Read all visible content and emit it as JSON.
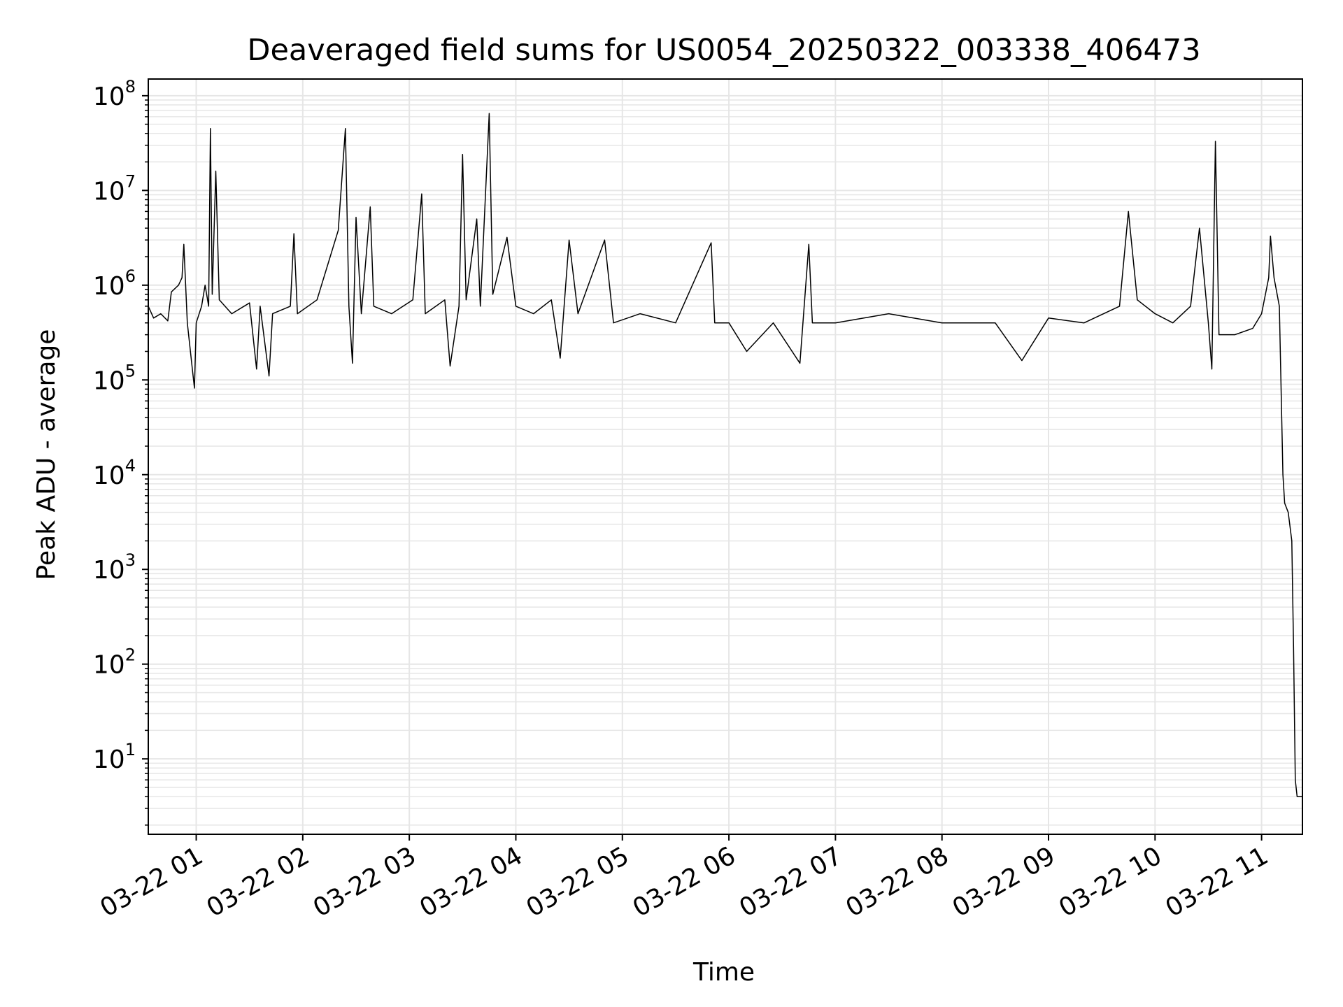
{
  "chart_data": {
    "type": "line",
    "title": "Deaveraged field sums for US0054_20250322_003338_406473",
    "xlabel": "Time",
    "ylabel": "Peak ADU - average",
    "y_scale": "log",
    "ylim": [
      1.6,
      150000000
    ],
    "xlim": [
      "2025-03-22 00:33",
      "2025-03-22 11:23"
    ],
    "grid": true,
    "line_color": "#000000",
    "grid_color": "#e6e6e6",
    "x_ticks": [
      {
        "value": "2025-03-22 01:00",
        "label": "03-22 01"
      },
      {
        "value": "2025-03-22 02:00",
        "label": "03-22 02"
      },
      {
        "value": "2025-03-22 03:00",
        "label": "03-22 03"
      },
      {
        "value": "2025-03-22 04:00",
        "label": "03-22 04"
      },
      {
        "value": "2025-03-22 05:00",
        "label": "03-22 05"
      },
      {
        "value": "2025-03-22 06:00",
        "label": "03-22 06"
      },
      {
        "value": "2025-03-22 07:00",
        "label": "03-22 07"
      },
      {
        "value": "2025-03-22 08:00",
        "label": "03-22 08"
      },
      {
        "value": "2025-03-22 09:00",
        "label": "03-22 09"
      },
      {
        "value": "2025-03-22 10:00",
        "label": "03-22 10"
      },
      {
        "value": "2025-03-22 11:00",
        "label": "03-22 11"
      }
    ],
    "y_ticks": [
      {
        "value": 10,
        "base": "10",
        "exp": "1"
      },
      {
        "value": 100,
        "base": "10",
        "exp": "2"
      },
      {
        "value": 1000,
        "base": "10",
        "exp": "3"
      },
      {
        "value": 10000,
        "base": "10",
        "exp": "4"
      },
      {
        "value": 100000,
        "base": "10",
        "exp": "5"
      },
      {
        "value": 1000000,
        "base": "10",
        "exp": "6"
      },
      {
        "value": 10000000,
        "base": "10",
        "exp": "7"
      },
      {
        "value": 100000000,
        "base": "10",
        "exp": "8"
      }
    ],
    "series": [
      {
        "points": [
          [
            "2025-03-22 00:33",
            600000
          ],
          [
            "2025-03-22 00:36",
            450000
          ],
          [
            "2025-03-22 00:40",
            500000
          ],
          [
            "2025-03-22 00:44",
            420000
          ],
          [
            "2025-03-22 00:46",
            850000
          ],
          [
            "2025-03-22 00:50",
            1000000
          ],
          [
            "2025-03-22 00:52",
            1200000
          ],
          [
            "2025-03-22 00:53",
            2700000
          ],
          [
            "2025-03-22 00:55",
            400000
          ],
          [
            "2025-03-22 00:58",
            120000
          ],
          [
            "2025-03-22 00:59",
            82000
          ],
          [
            "2025-03-22 01:00",
            400000
          ],
          [
            "2025-03-22 01:03",
            600000
          ],
          [
            "2025-03-22 01:05",
            1000000
          ],
          [
            "2025-03-22 01:07",
            600000
          ],
          [
            "2025-03-22 01:08",
            45000000
          ],
          [
            "2025-03-22 01:09",
            800000
          ],
          [
            "2025-03-22 01:11",
            16000000
          ],
          [
            "2025-03-22 01:13",
            700000
          ],
          [
            "2025-03-22 01:20",
            500000
          ],
          [
            "2025-03-22 01:30",
            650000
          ],
          [
            "2025-03-22 01:34",
            130000
          ],
          [
            "2025-03-22 01:36",
            600000
          ],
          [
            "2025-03-22 01:41",
            110000
          ],
          [
            "2025-03-22 01:43",
            500000
          ],
          [
            "2025-03-22 01:53",
            600000
          ],
          [
            "2025-03-22 01:55",
            3500000
          ],
          [
            "2025-03-22 01:57",
            500000
          ],
          [
            "2025-03-22 02:08",
            700000
          ],
          [
            "2025-03-22 02:20",
            3800000
          ],
          [
            "2025-03-22 02:24",
            45000000
          ],
          [
            "2025-03-22 02:26",
            600000
          ],
          [
            "2025-03-22 02:28",
            150000
          ],
          [
            "2025-03-22 02:30",
            5200000
          ],
          [
            "2025-03-22 02:33",
            500000
          ],
          [
            "2025-03-22 02:38",
            6700000
          ],
          [
            "2025-03-22 02:40",
            600000
          ],
          [
            "2025-03-22 02:50",
            500000
          ],
          [
            "2025-03-22 03:02",
            700000
          ],
          [
            "2025-03-22 03:07",
            9200000
          ],
          [
            "2025-03-22 03:09",
            500000
          ],
          [
            "2025-03-22 03:20",
            700000
          ],
          [
            "2025-03-22 03:23",
            140000
          ],
          [
            "2025-03-22 03:28",
            600000
          ],
          [
            "2025-03-22 03:30",
            24000000
          ],
          [
            "2025-03-22 03:32",
            700000
          ],
          [
            "2025-03-22 03:38",
            5000000
          ],
          [
            "2025-03-22 03:40",
            600000
          ],
          [
            "2025-03-22 03:45",
            65000000
          ],
          [
            "2025-03-22 03:47",
            800000
          ],
          [
            "2025-03-22 03:55",
            3200000
          ],
          [
            "2025-03-22 04:00",
            600000
          ],
          [
            "2025-03-22 04:10",
            500000
          ],
          [
            "2025-03-22 04:20",
            700000
          ],
          [
            "2025-03-22 04:25",
            170000
          ],
          [
            "2025-03-22 04:30",
            3000000
          ],
          [
            "2025-03-22 04:35",
            500000
          ],
          [
            "2025-03-22 04:50",
            3000000
          ],
          [
            "2025-03-22 04:55",
            400000
          ],
          [
            "2025-03-22 05:10",
            500000
          ],
          [
            "2025-03-22 05:30",
            400000
          ],
          [
            "2025-03-22 05:50",
            2800000
          ],
          [
            "2025-03-22 05:52",
            400000
          ],
          [
            "2025-03-22 06:00",
            400000
          ],
          [
            "2025-03-22 06:10",
            200000
          ],
          [
            "2025-03-22 06:25",
            400000
          ],
          [
            "2025-03-22 06:40",
            150000
          ],
          [
            "2025-03-22 06:45",
            2700000
          ],
          [
            "2025-03-22 06:47",
            400000
          ],
          [
            "2025-03-22 07:00",
            400000
          ],
          [
            "2025-03-22 07:30",
            500000
          ],
          [
            "2025-03-22 08:00",
            400000
          ],
          [
            "2025-03-22 08:30",
            400000
          ],
          [
            "2025-03-22 08:45",
            160000
          ],
          [
            "2025-03-22 09:00",
            450000
          ],
          [
            "2025-03-22 09:20",
            400000
          ],
          [
            "2025-03-22 09:40",
            600000
          ],
          [
            "2025-03-22 09:45",
            6000000
          ],
          [
            "2025-03-22 09:50",
            700000
          ],
          [
            "2025-03-22 10:00",
            500000
          ],
          [
            "2025-03-22 10:10",
            400000
          ],
          [
            "2025-03-22 10:20",
            600000
          ],
          [
            "2025-03-22 10:25",
            4000000
          ],
          [
            "2025-03-22 10:30",
            400000
          ],
          [
            "2025-03-22 10:32",
            130000
          ],
          [
            "2025-03-22 10:34",
            33000000
          ],
          [
            "2025-03-22 10:36",
            300000
          ],
          [
            "2025-03-22 10:45",
            300000
          ],
          [
            "2025-03-22 10:55",
            350000
          ],
          [
            "2025-03-22 11:00",
            500000
          ],
          [
            "2025-03-22 11:04",
            1200000
          ],
          [
            "2025-03-22 11:05",
            3300000
          ],
          [
            "2025-03-22 11:07",
            1200000
          ],
          [
            "2025-03-22 11:10",
            600000
          ],
          [
            "2025-03-22 11:12",
            10000
          ],
          [
            "2025-03-22 11:13",
            5000
          ],
          [
            "2025-03-22 11:15",
            4000
          ],
          [
            "2025-03-22 11:17",
            2000
          ],
          [
            "2025-03-22 11:18",
            150
          ],
          [
            "2025-03-22 11:19",
            6
          ],
          [
            "2025-03-22 11:20",
            4
          ],
          [
            "2025-03-22 11:23",
            4
          ]
        ]
      }
    ]
  }
}
